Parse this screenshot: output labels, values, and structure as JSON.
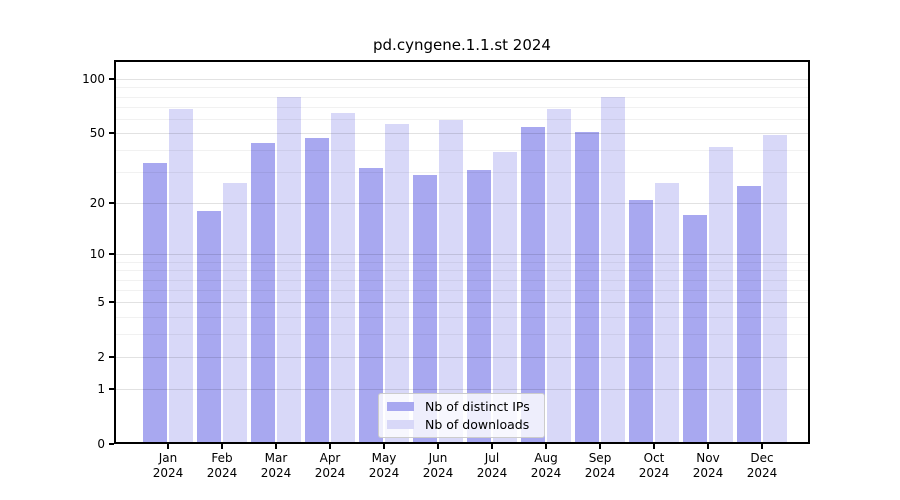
{
  "title": "pd.cyngene.1.1.st 2024",
  "chart_data": {
    "type": "bar",
    "title": "pd.cyngene.1.1.st 2024",
    "categories": [
      "Jan 2024",
      "Feb 2024",
      "Mar 2024",
      "Apr 2024",
      "May 2024",
      "Jun 2024",
      "Jul 2024",
      "Aug 2024",
      "Sep 2024",
      "Oct 2024",
      "Nov 2024",
      "Dec 2024"
    ],
    "series": [
      {
        "name": "Nb of distinct IPs",
        "color": "#a8a8f0",
        "values": [
          34,
          18,
          44,
          47,
          32,
          29,
          31,
          54,
          51,
          21,
          17,
          25
        ]
      },
      {
        "name": "Nb of downloads",
        "color": "#d8d8f8",
        "values": [
          68,
          26,
          79,
          65,
          56,
          59,
          39,
          68,
          80,
          26,
          42,
          49
        ]
      }
    ],
    "xlabel": "",
    "ylabel": "",
    "y_scale": "log1p",
    "ylim": [
      0,
      110
    ],
    "y_ticks": [
      0,
      1,
      2,
      5,
      10,
      20,
      50,
      100
    ],
    "y_gridlines_major": [
      1,
      2,
      5,
      10,
      20,
      50,
      100
    ],
    "y_gridlines_minor": [
      3,
      4,
      6,
      7,
      8,
      9,
      30,
      40,
      60,
      70,
      80,
      90
    ],
    "grid": true,
    "legend_position": "lower center"
  },
  "legend": {
    "items": [
      {
        "label": "Nb of distinct IPs"
      },
      {
        "label": "Nb of downloads"
      }
    ]
  },
  "colors": {
    "distinct_ips": "#a8a8f0",
    "downloads": "#d8d8f8",
    "spine": "#000000",
    "legend_border": "#cccccc"
  }
}
